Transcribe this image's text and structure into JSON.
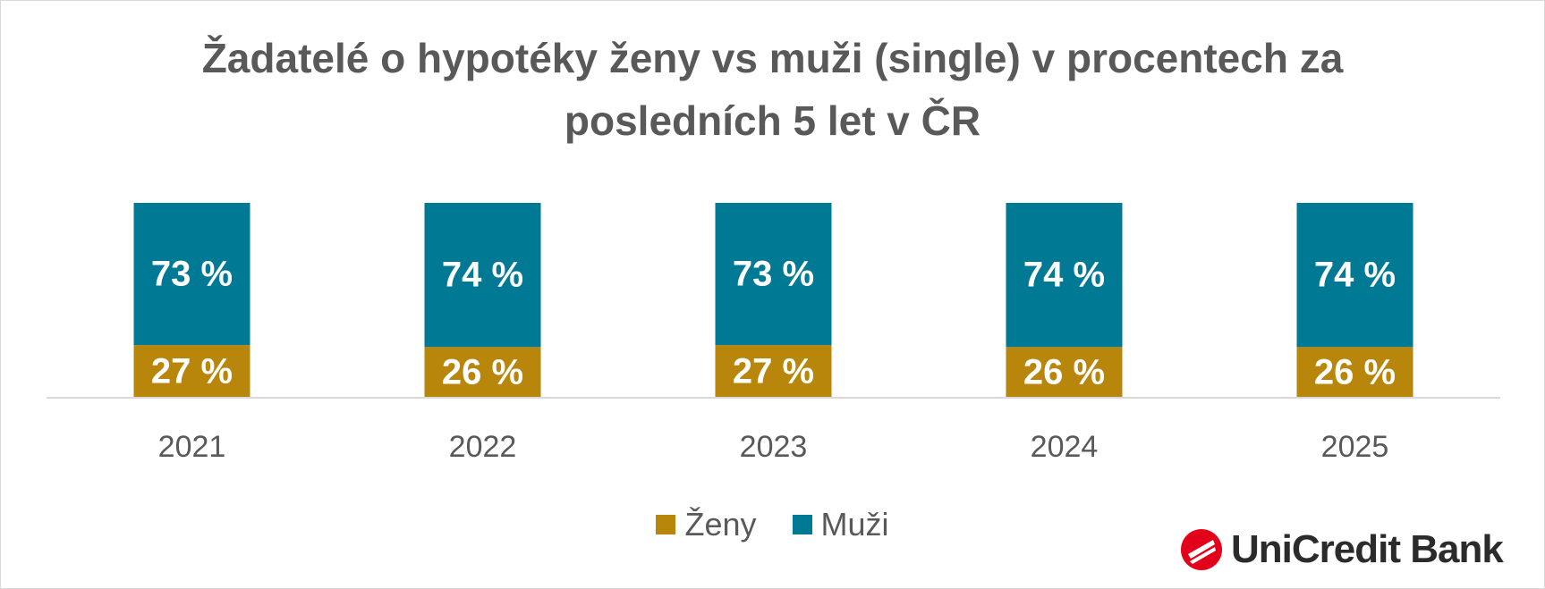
{
  "chart_data": {
    "type": "bar",
    "stacked": true,
    "percent_stacked": true,
    "title": "Žadatelé o hypotéky ženy vs muži (single) v procentech za posledních 5 let v ČR",
    "title_lines": [
      "Žadatelé o hypotéky ženy vs muži (single) v procentech za",
      "posledních 5 let v ČR"
    ],
    "categories": [
      "2021",
      "2022",
      "2023",
      "2024",
      "2025"
    ],
    "series": [
      {
        "name": "Ženy",
        "color": "#b8860b",
        "values": [
          27,
          26,
          27,
          26,
          26
        ],
        "labels": [
          "27 %",
          "26 %",
          "27 %",
          "26 %",
          "26 %"
        ]
      },
      {
        "name": "Muži",
        "color": "#007a94",
        "values": [
          73,
          74,
          73,
          74,
          74
        ],
        "labels": [
          "73 %",
          "74 %",
          "73 %",
          "74 %",
          "74 %"
        ]
      }
    ],
    "ylim": [
      0,
      100
    ],
    "xlabel": "",
    "ylabel": "",
    "grid": false,
    "legend_position": "bottom"
  },
  "logo": {
    "text": "UniCredit Bank",
    "icon": "unicredit-logo-icon",
    "color": "#e2001a"
  }
}
